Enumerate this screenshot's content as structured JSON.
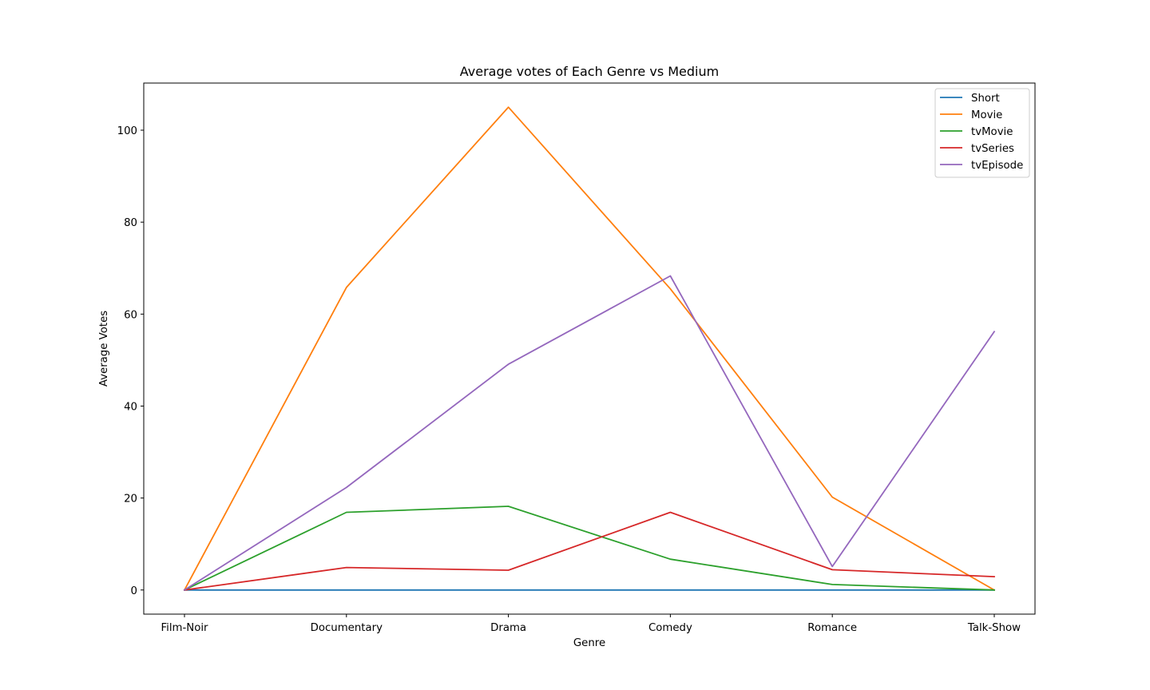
{
  "chart_data": {
    "type": "line",
    "title": "Average votes of Each Genre vs Medium",
    "xlabel": "Genre",
    "ylabel": "Average Votes",
    "categories": [
      "Film-Noir",
      "Documentary",
      "Drama",
      "Comedy",
      "Romance",
      "Talk-Show"
    ],
    "ylim": [
      -5.25,
      110.25
    ],
    "yticks": [
      0,
      20,
      40,
      60,
      80,
      100
    ],
    "grid": false,
    "legend_position": "top-right",
    "series": [
      {
        "name": "Short",
        "color": "#1f77b4",
        "values": [
          0,
          0,
          0,
          0,
          0,
          0
        ]
      },
      {
        "name": "Movie",
        "color": "#ff7f0e",
        "values": [
          0,
          65.8,
          105,
          65.5,
          20.2,
          0
        ]
      },
      {
        "name": "tvMovie",
        "color": "#2ca02c",
        "values": [
          0,
          16.9,
          18.2,
          6.7,
          1.2,
          0
        ]
      },
      {
        "name": "tvSeries",
        "color": "#d62728",
        "values": [
          0,
          4.9,
          4.3,
          16.9,
          4.4,
          2.9
        ]
      },
      {
        "name": "tvEpisode",
        "color": "#9467bd",
        "values": [
          0,
          22.3,
          49.1,
          68.3,
          5.1,
          56.2
        ]
      }
    ]
  }
}
